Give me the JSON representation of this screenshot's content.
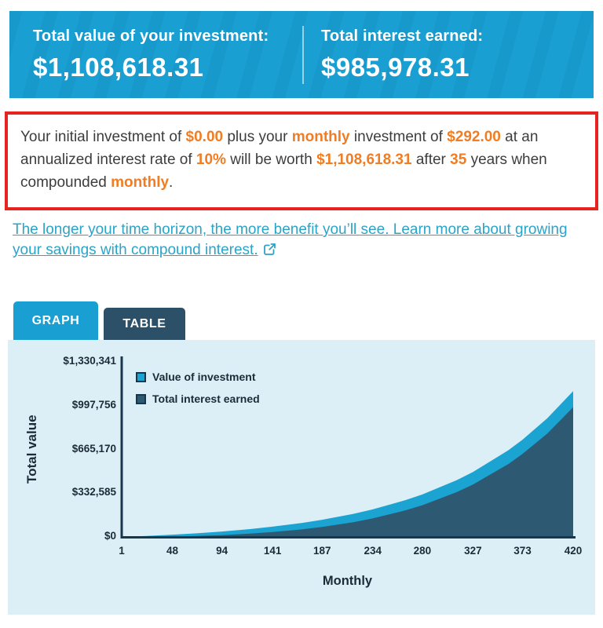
{
  "colors": {
    "brand_cyan": "#1a9fd3",
    "highlight_orange": "#f07d23",
    "alert_red_border": "#e6231e",
    "link_teal": "#2aa4c7",
    "tab_inactive_navy": "#2d5069",
    "panel_background": "#ddeff6",
    "series_value_blue": "#1ba3d1",
    "series_interest_navy": "#2e5973",
    "axis_navy": "#16374e"
  },
  "header": {
    "left": {
      "label": "Total value of your investment:",
      "value": "$1,108,618.31"
    },
    "right": {
      "label": "Total interest earned:",
      "value": "$985,978.31"
    }
  },
  "summary": {
    "segments": [
      {
        "text": "Your initial investment of ",
        "highlight": false
      },
      {
        "text": "$0.00",
        "highlight": true
      },
      {
        "text": " plus your ",
        "highlight": false
      },
      {
        "text": "monthly",
        "highlight": true
      },
      {
        "text": " investment of ",
        "highlight": false
      },
      {
        "text": "$292.00",
        "highlight": true
      },
      {
        "text": " at an annualized interest rate of ",
        "highlight": false
      },
      {
        "text": "10%",
        "highlight": true
      },
      {
        "text": " will be worth ",
        "highlight": false
      },
      {
        "text": "$1,108,618.31",
        "highlight": true
      },
      {
        "text": " after ",
        "highlight": false
      },
      {
        "text": "35",
        "highlight": true
      },
      {
        "text": " years when compounded ",
        "highlight": false
      },
      {
        "text": "monthly",
        "highlight": true
      },
      {
        "text": ".",
        "highlight": false
      }
    ]
  },
  "link": {
    "text": "The longer your time horizon, the more benefit you’ll see. Learn more about growing your savings with compound interest.",
    "icon": "external-link-icon"
  },
  "tabs": [
    {
      "label": "GRAPH",
      "active": true
    },
    {
      "label": "TABLE",
      "active": false
    }
  ],
  "chart_data": {
    "type": "area",
    "title": "",
    "xlabel": "Monthly",
    "ylabel": "Total value",
    "x_max": 420,
    "y_max": 1330341,
    "x_ticks": [
      1,
      48,
      94,
      141,
      187,
      234,
      280,
      327,
      373,
      420
    ],
    "y_tick_labels": [
      "$1,330,341",
      "$997,756",
      "$665,170",
      "$332,585",
      "$0"
    ],
    "grid": false,
    "legend_position": "top-left",
    "legend": [
      {
        "label": "Value of investment",
        "color": "#1ba3d1"
      },
      {
        "label": "Total interest earned",
        "color": "#2e5973"
      }
    ],
    "months": [
      1,
      24,
      48,
      72,
      94,
      120,
      141,
      168,
      187,
      216,
      234,
      264,
      280,
      312,
      327,
      360,
      373,
      396,
      420
    ],
    "series": [
      {
        "name": "Value of investment",
        "color": "#1ba3d1",
        "values": [
          292,
          7722,
          17147,
          28648,
          41402,
          59815,
          77871,
          106233,
          130364,
          175384,
          209268,
          278362,
          322834,
          431637,
          493507,
          659780,
          739197,
          902077,
          1108618
        ]
      },
      {
        "name": "Total interest earned",
        "color": "#2e5973",
        "values": [
          0,
          714,
          3131,
          7624,
          13954,
          24775,
          36699,
          57177,
          75760,
          112312,
          140940,
          201274,
          241074,
          340533,
          398023,
          554660,
          630281,
          786445,
          985978
        ]
      }
    ]
  }
}
